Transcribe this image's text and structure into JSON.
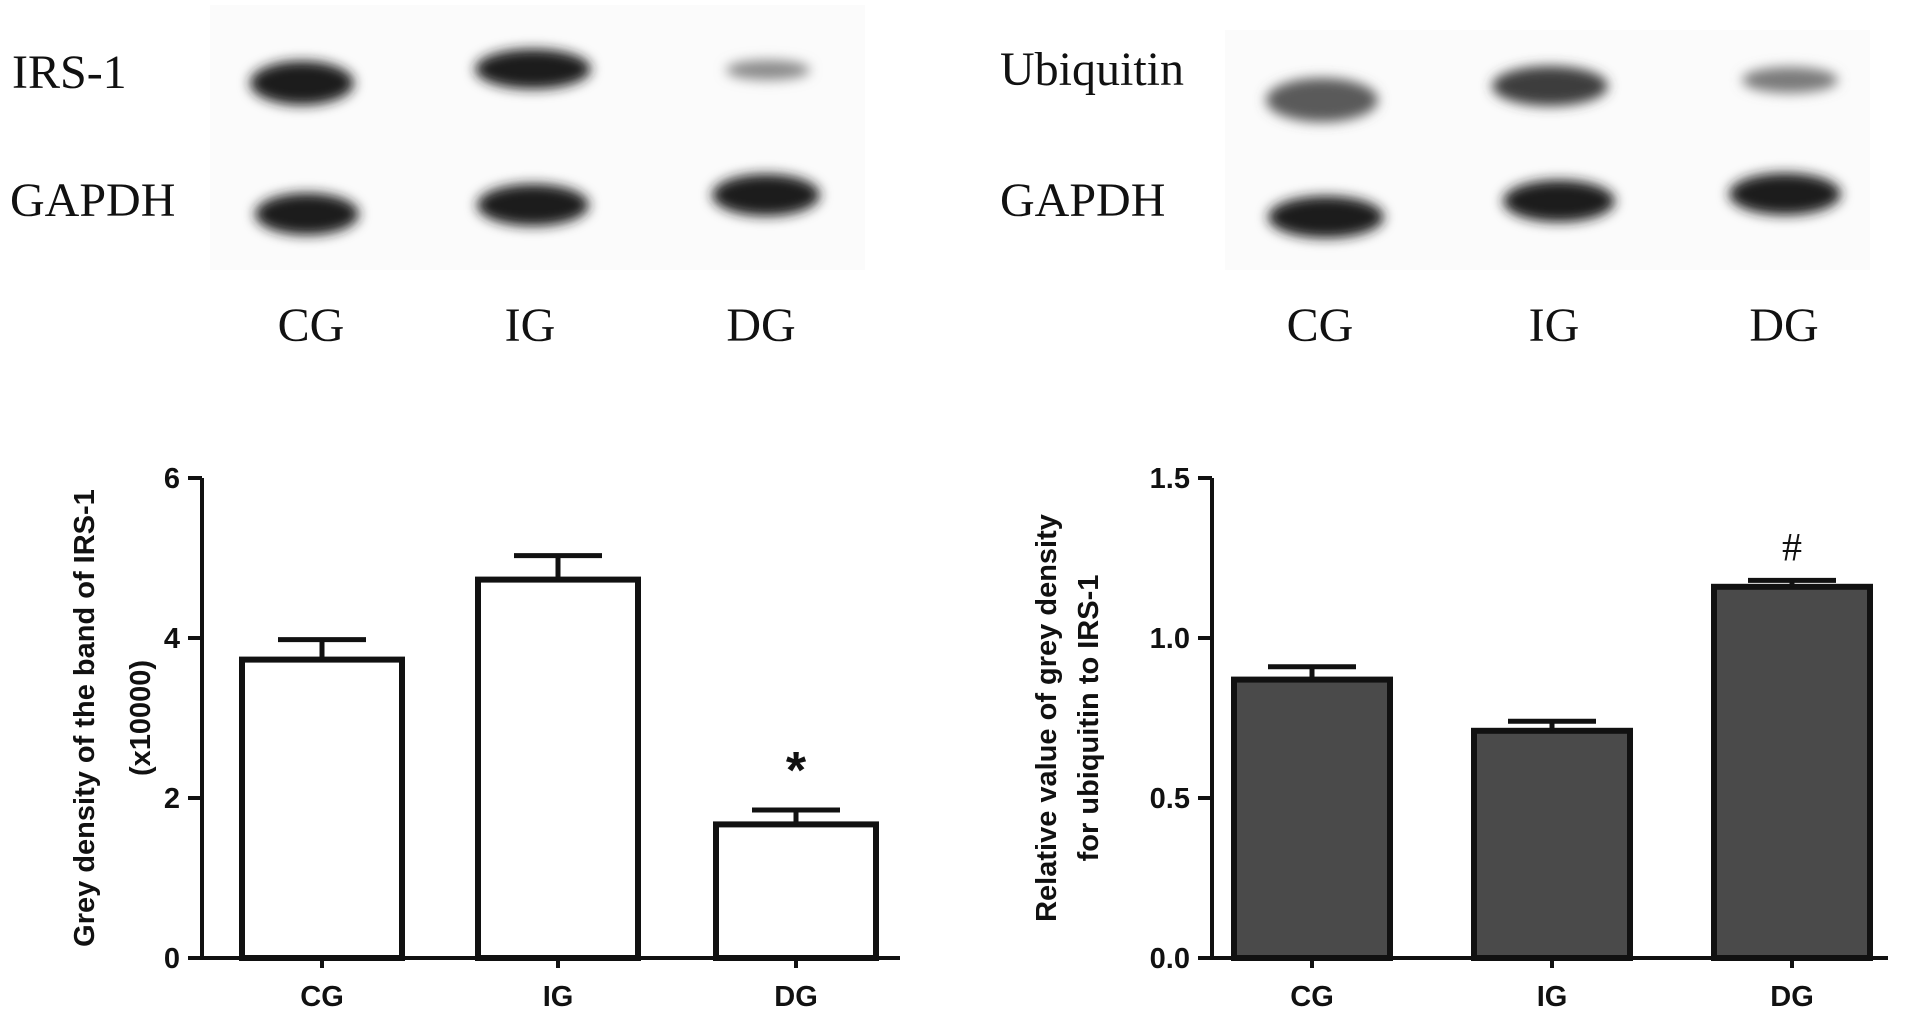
{
  "blots": {
    "left": {
      "row_labels": [
        "IRS-1",
        "GAPDH"
      ],
      "lane_labels": [
        "CG",
        "IG",
        "DG"
      ]
    },
    "right": {
      "row_labels": [
        "Ubiquitin",
        "GAPDH"
      ],
      "lane_labels": [
        "CG",
        "IG",
        "DG"
      ]
    }
  },
  "chart_data": [
    {
      "type": "bar",
      "categories": [
        "CG",
        "IG",
        "DG"
      ],
      "values": [
        3.73,
        4.73,
        1.67
      ],
      "errors": [
        0.25,
        0.3,
        0.18
      ],
      "annotations": [
        "",
        "",
        "*"
      ],
      "ylabel": "Grey density of the band of IRS-1 (x10000)",
      "ylabel_lines": [
        "Grey density of the band of IRS-1",
        "(x10000)"
      ],
      "ylim": [
        0,
        6
      ],
      "yticks": [
        0,
        2,
        4,
        6
      ],
      "ytick_labels": [
        "0",
        "2",
        "4",
        "6"
      ],
      "bar_color": "#ffffff"
    },
    {
      "type": "bar",
      "categories": [
        "CG",
        "IG",
        "DG"
      ],
      "values": [
        0.87,
        0.71,
        1.16
      ],
      "errors": [
        0.04,
        0.03,
        0.02
      ],
      "annotations": [
        "",
        "",
        "#"
      ],
      "ylabel": "Relative value of grey density for ubiquitin to IRS-1",
      "ylabel_lines": [
        "Relative value of grey density",
        "for ubiquitin to IRS-1"
      ],
      "ylim": [
        0,
        1.5
      ],
      "yticks": [
        0,
        0.5,
        1.0,
        1.5
      ],
      "ytick_labels": [
        "0.0",
        "0.5",
        "1.0",
        "1.5"
      ],
      "bar_color": "#4a4a4a"
    }
  ]
}
